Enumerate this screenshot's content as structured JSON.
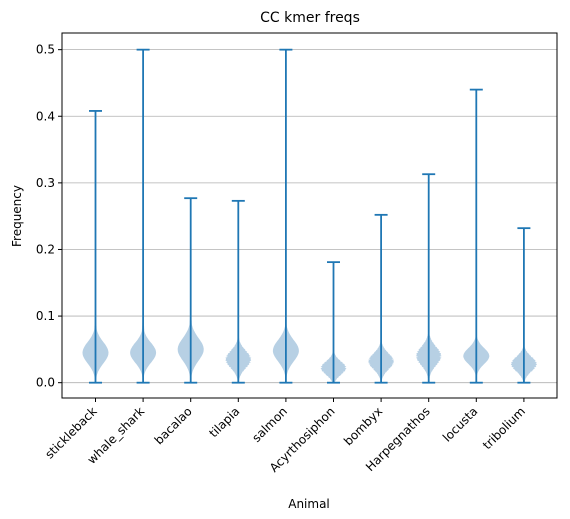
{
  "chart_data": {
    "type": "violin",
    "title": "CC kmer freqs",
    "xlabel": "Animal",
    "ylabel": "Frequency",
    "ylim": [
      -0.023,
      0.525
    ],
    "yticks": [
      0.0,
      0.1,
      0.2,
      0.3,
      0.4,
      0.5
    ],
    "ytick_labels": [
      "0.0",
      "0.1",
      "0.2",
      "0.3",
      "0.4",
      "0.5"
    ],
    "grid": "y",
    "colors": {
      "violin_fill": "#b3cde3",
      "stem": "#1f77b4",
      "grid": "#b0b0b0"
    },
    "categories": [
      "stickleback",
      "whale_shark",
      "bacalao",
      "tilapia",
      "salmon",
      "Acyrthosiphon",
      "bombyx",
      "Harpegnathos",
      "locusta",
      "tribolium"
    ],
    "violins": [
      {
        "min": 0.0,
        "max": 0.408,
        "mode": 0.045,
        "spread": 0.016,
        "peak": 0.14,
        "tail": 0.125,
        "jagged": false
      },
      {
        "min": 0.0,
        "max": 0.5,
        "mode": 0.045,
        "spread": 0.015,
        "peak": 0.14,
        "tail": 0.12,
        "jagged": false
      },
      {
        "min": 0.0,
        "max": 0.277,
        "mode": 0.05,
        "spread": 0.017,
        "peak": 0.14,
        "tail": 0.13,
        "jagged": false
      },
      {
        "min": 0.0,
        "max": 0.273,
        "mode": 0.035,
        "spread": 0.013,
        "peak": 0.12,
        "tail": 0.09,
        "jagged": true
      },
      {
        "min": 0.0,
        "max": 0.5,
        "mode": 0.048,
        "spread": 0.016,
        "peak": 0.14,
        "tail": 0.11,
        "jagged": false
      },
      {
        "min": 0.0,
        "max": 0.181,
        "mode": 0.022,
        "spread": 0.01,
        "peak": 0.12,
        "tail": 0.05,
        "jagged": true
      },
      {
        "min": 0.0,
        "max": 0.252,
        "mode": 0.032,
        "spread": 0.012,
        "peak": 0.11,
        "tail": 0.08,
        "jagged": true
      },
      {
        "min": 0.0,
        "max": 0.313,
        "mode": 0.04,
        "spread": 0.014,
        "peak": 0.12,
        "tail": 0.09,
        "jagged": true
      },
      {
        "min": 0.0,
        "max": 0.44,
        "mode": 0.04,
        "spread": 0.012,
        "peak": 0.13,
        "tail": 0.08,
        "jagged": false
      },
      {
        "min": 0.0,
        "max": 0.232,
        "mode": 0.028,
        "spread": 0.011,
        "peak": 0.12,
        "tail": 0.07,
        "jagged": true
      }
    ]
  }
}
